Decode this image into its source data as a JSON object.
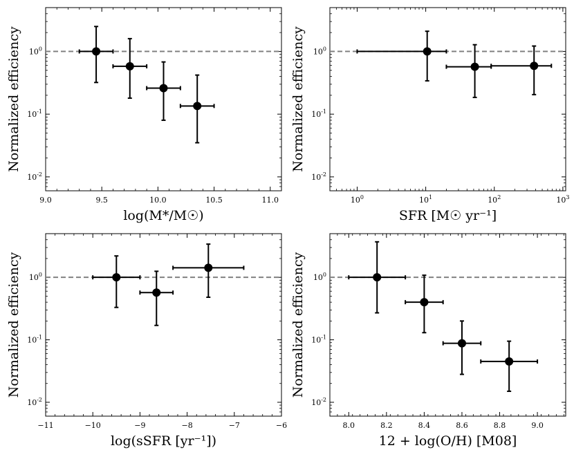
{
  "chart_data": [
    {
      "type": "scatter",
      "xscale": "linear",
      "yscale": "log",
      "xlabel": "log(M*/M☉)",
      "ylabel": "Normalized efficiency",
      "xlim": [
        9.0,
        11.1
      ],
      "ylim": [
        0.006,
        5.0
      ],
      "xticks": [
        9.0,
        9.5,
        10.0,
        10.5,
        11.0
      ],
      "xtick_labels": [
        "9.0",
        "9.5",
        "10.0",
        "10.5",
        "11.0"
      ],
      "yticks": [
        0.01,
        0.1,
        1
      ],
      "reference_line": 1.0,
      "points": [
        {
          "x": 9.45,
          "xlo": 9.3,
          "xhi": 9.6,
          "y": 1.0,
          "ylo": 0.32,
          "yhi": 2.5
        },
        {
          "x": 9.75,
          "xlo": 9.6,
          "xhi": 9.9,
          "y": 0.58,
          "ylo": 0.18,
          "yhi": 1.6
        },
        {
          "x": 10.05,
          "xlo": 9.9,
          "xhi": 10.2,
          "y": 0.26,
          "ylo": 0.08,
          "yhi": 0.68
        },
        {
          "x": 10.35,
          "xlo": 10.2,
          "xhi": 10.5,
          "y": 0.135,
          "ylo": 0.035,
          "yhi": 0.42
        }
      ]
    },
    {
      "type": "scatter",
      "xscale": "log",
      "yscale": "log",
      "xlabel": "SFR [M☉ yr⁻¹]",
      "ylabel": "Normalized efficiency",
      "xlim": [
        0.4,
        1100
      ],
      "ylim": [
        0.006,
        5.0
      ],
      "xticks": [
        1,
        10,
        100,
        1000
      ],
      "xtick_labels": [
        "10^0",
        "10^1",
        "10^2",
        "10^3"
      ],
      "yticks": [
        0.01,
        0.1,
        1
      ],
      "reference_line": 1.0,
      "points": [
        {
          "x": 10.5,
          "xlo": 1.0,
          "xhi": 20,
          "y": 1.0,
          "ylo": 0.34,
          "yhi": 2.1
        },
        {
          "x": 52,
          "xlo": 20,
          "xhi": 90,
          "y": 0.57,
          "ylo": 0.185,
          "yhi": 1.28
        },
        {
          "x": 380,
          "xlo": 90,
          "xhi": 680,
          "y": 0.59,
          "ylo": 0.205,
          "yhi": 1.22
        }
      ]
    },
    {
      "type": "scatter",
      "xscale": "linear",
      "yscale": "log",
      "xlabel": "log(sSFR [yr⁻¹])",
      "ylabel": "Normalized efficiency",
      "xlim": [
        -11.0,
        -6.0
      ],
      "ylim": [
        0.006,
        5.0
      ],
      "xticks": [
        -11,
        -10,
        -9,
        -8,
        -7,
        -6
      ],
      "xtick_labels": [
        "−11",
        "−10",
        "−9",
        "−8",
        "−7",
        "−6"
      ],
      "yticks": [
        0.01,
        0.1,
        1
      ],
      "reference_line": 1.0,
      "points": [
        {
          "x": -9.5,
          "xlo": -10.0,
          "xhi": -9.0,
          "y": 1.0,
          "ylo": 0.33,
          "yhi": 2.2
        },
        {
          "x": -8.65,
          "xlo": -9.0,
          "xhi": -8.3,
          "y": 0.57,
          "ylo": 0.17,
          "yhi": 1.25
        },
        {
          "x": -7.55,
          "xlo": -8.3,
          "xhi": -6.8,
          "y": 1.42,
          "ylo": 0.48,
          "yhi": 3.4
        }
      ]
    },
    {
      "type": "scatter",
      "xscale": "linear",
      "yscale": "log",
      "xlabel": "12 + log(O/H) [M08]",
      "ylabel": "Normalized efficiency",
      "xlim": [
        7.9,
        9.15
      ],
      "ylim": [
        0.006,
        5.0
      ],
      "xticks": [
        8.0,
        8.2,
        8.4,
        8.6,
        8.8,
        9.0
      ],
      "xtick_labels": [
        "8.0",
        "8.2",
        "8.4",
        "8.6",
        "8.8",
        "9.0"
      ],
      "yticks": [
        0.01,
        0.1,
        1
      ],
      "reference_line": 1.0,
      "points": [
        {
          "x": 8.15,
          "xlo": 8.0,
          "xhi": 8.3,
          "y": 1.0,
          "ylo": 0.27,
          "yhi": 3.7
        },
        {
          "x": 8.4,
          "xlo": 8.3,
          "xhi": 8.5,
          "y": 0.4,
          "ylo": 0.13,
          "yhi": 1.08
        },
        {
          "x": 8.6,
          "xlo": 8.5,
          "xhi": 8.7,
          "y": 0.088,
          "ylo": 0.028,
          "yhi": 0.2
        },
        {
          "x": 8.85,
          "xlo": 8.7,
          "xhi": 9.0,
          "y": 0.045,
          "ylo": 0.015,
          "yhi": 0.095
        }
      ]
    }
  ]
}
